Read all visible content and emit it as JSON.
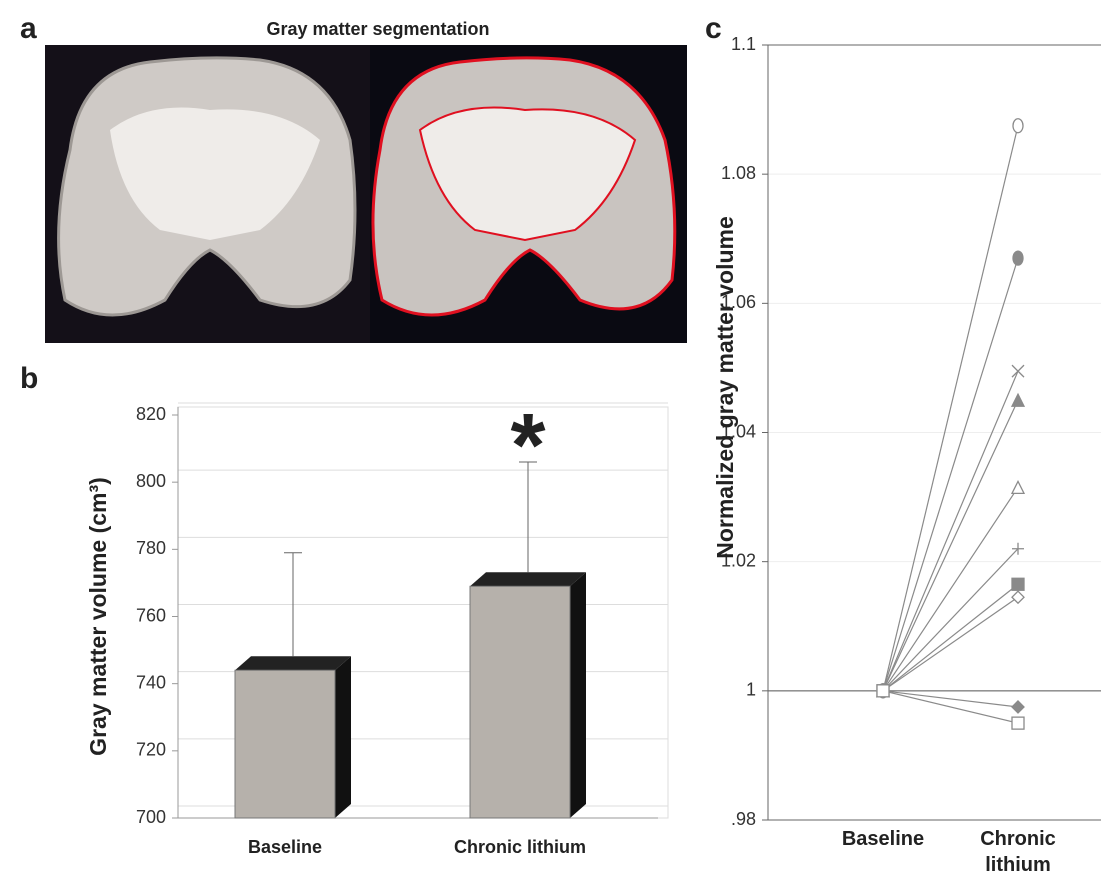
{
  "figure": {
    "panel": "a",
    "title": "Gray matter segmentation"
  },
  "chart_data": [
    {
      "type": "bar",
      "panel": "b",
      "ylabel": "Gray matter volume (cm³)",
      "categories": [
        "Baseline",
        "Chronic lithium"
      ],
      "values": [
        744,
        769
      ],
      "errors": [
        35,
        37
      ],
      "color": "#b6b1ab",
      "ylim": [
        700,
        820
      ],
      "yticks": [
        700,
        720,
        740,
        760,
        780,
        800,
        820
      ],
      "grid": true,
      "annotation": "*"
    },
    {
      "type": "line",
      "panel": "c",
      "ylabel": "Normalized gray matter volume",
      "categories": [
        "Baseline",
        "Chronic lithium"
      ],
      "ylim": [
        0.98,
        1.1
      ],
      "yticks": [
        {
          "value": 0.98,
          "label": ".98"
        },
        1,
        1.02,
        1.04,
        1.06,
        1.08,
        1.1
      ],
      "grid": true,
      "series": [
        {
          "color": "#8a8a8a",
          "marker": "circle",
          "filled": false,
          "values": [
            1,
            1.0875
          ]
        },
        {
          "color": "#8a8a8a",
          "marker": "circle",
          "filled": true,
          "values": [
            1,
            1.067
          ]
        },
        {
          "color": "#8a8a8a",
          "marker": "x",
          "filled": false,
          "values": [
            1,
            1.0495
          ]
        },
        {
          "color": "#8a8a8a",
          "marker": "triangle",
          "filled": true,
          "values": [
            1,
            1.045
          ]
        },
        {
          "color": "#8a8a8a",
          "marker": "triangle",
          "filled": false,
          "values": [
            1,
            1.0315
          ]
        },
        {
          "color": "#8a8a8a",
          "marker": "plus",
          "filled": false,
          "values": [
            1,
            1.022
          ]
        },
        {
          "color": "#8a8a8a",
          "marker": "square",
          "filled": true,
          "values": [
            1,
            1.0165
          ]
        },
        {
          "color": "#8a8a8a",
          "marker": "diamond",
          "filled": false,
          "values": [
            1,
            1.0145
          ]
        },
        {
          "color": "#8a8a8a",
          "marker": "diamond",
          "filled": true,
          "values": [
            1,
            0.9975
          ]
        },
        {
          "color": "#8a8a8a",
          "marker": "square",
          "filled": false,
          "values": [
            1,
            0.995
          ]
        }
      ]
    }
  ]
}
